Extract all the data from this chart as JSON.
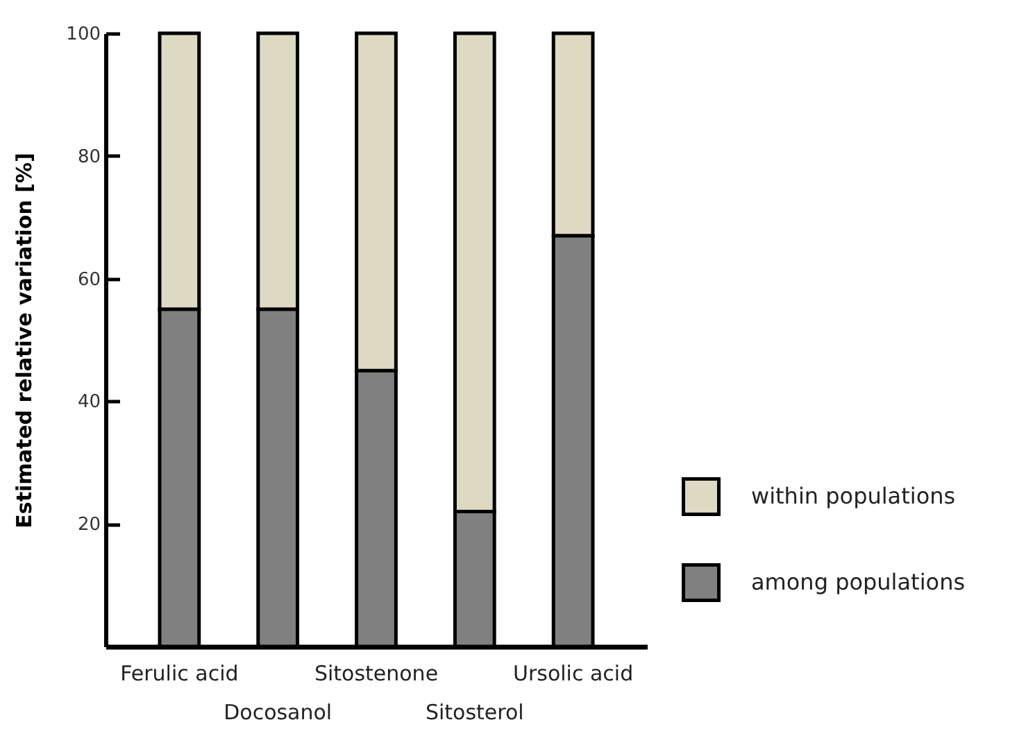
{
  "chart_data": {
    "type": "bar",
    "ylabel": "Estimated  relative  variation [%]",
    "categories": [
      "Ferulic acid",
      "Docosanol",
      "Sitostenone",
      "Sitosterol",
      "Ursolic acid"
    ],
    "stacked": true,
    "series": [
      {
        "name": "among populations",
        "color": "#808080",
        "values": [
          55,
          55,
          45,
          22,
          67
        ]
      },
      {
        "name": "within populations",
        "color": "#ddd9c3",
        "values": [
          45,
          45,
          55,
          78,
          33
        ]
      }
    ],
    "ylim": [
      0,
      100
    ],
    "yticks": [
      20,
      40,
      60,
      80,
      100
    ],
    "grid": false,
    "legend": "bottom right"
  }
}
